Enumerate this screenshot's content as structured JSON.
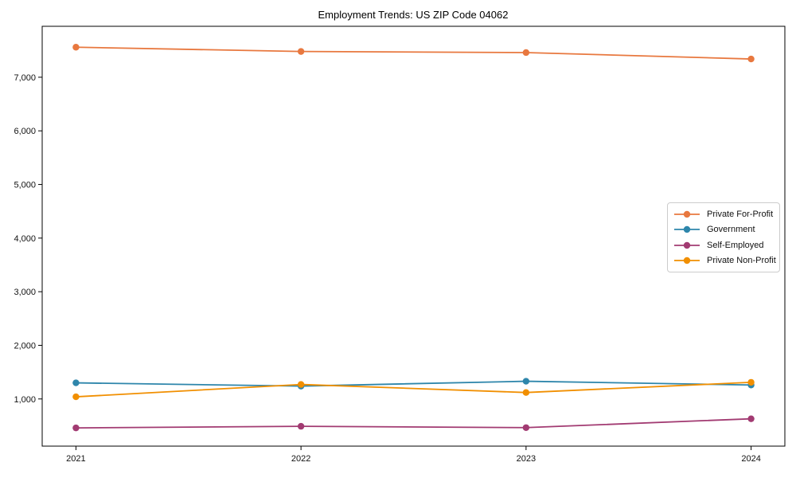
{
  "chart_data": {
    "type": "line",
    "title": "Employment Trends: US ZIP Code 04062",
    "x": [
      2021,
      2022,
      2023,
      2024
    ],
    "x_tick_labels": [
      "2021",
      "2022",
      "2023",
      "2024"
    ],
    "y_tick_values": [
      1000,
      2000,
      3000,
      4000,
      5000,
      6000,
      7000
    ],
    "y_tick_labels": [
      "1,000",
      "2,000",
      "3,000",
      "4,000",
      "5,000",
      "6,000",
      "7,000"
    ],
    "xlim": [
      2020.85,
      2024.15
    ],
    "ylim": [
      120,
      7950
    ],
    "grid": false,
    "marker": "circle",
    "legend_position": "center-right",
    "axis_color": "#000000",
    "series": [
      {
        "name": "Private For-Profit",
        "color": "#e8783f",
        "values": [
          7560,
          7480,
          7460,
          7340
        ]
      },
      {
        "name": "Government",
        "color": "#2e86ab",
        "values": [
          1300,
          1240,
          1330,
          1260
        ]
      },
      {
        "name": "Self-Employed",
        "color": "#a23b72",
        "values": [
          460,
          490,
          465,
          630
        ]
      },
      {
        "name": "Private Non-Profit",
        "color": "#f18f01",
        "values": [
          1040,
          1270,
          1120,
          1310
        ]
      }
    ]
  }
}
